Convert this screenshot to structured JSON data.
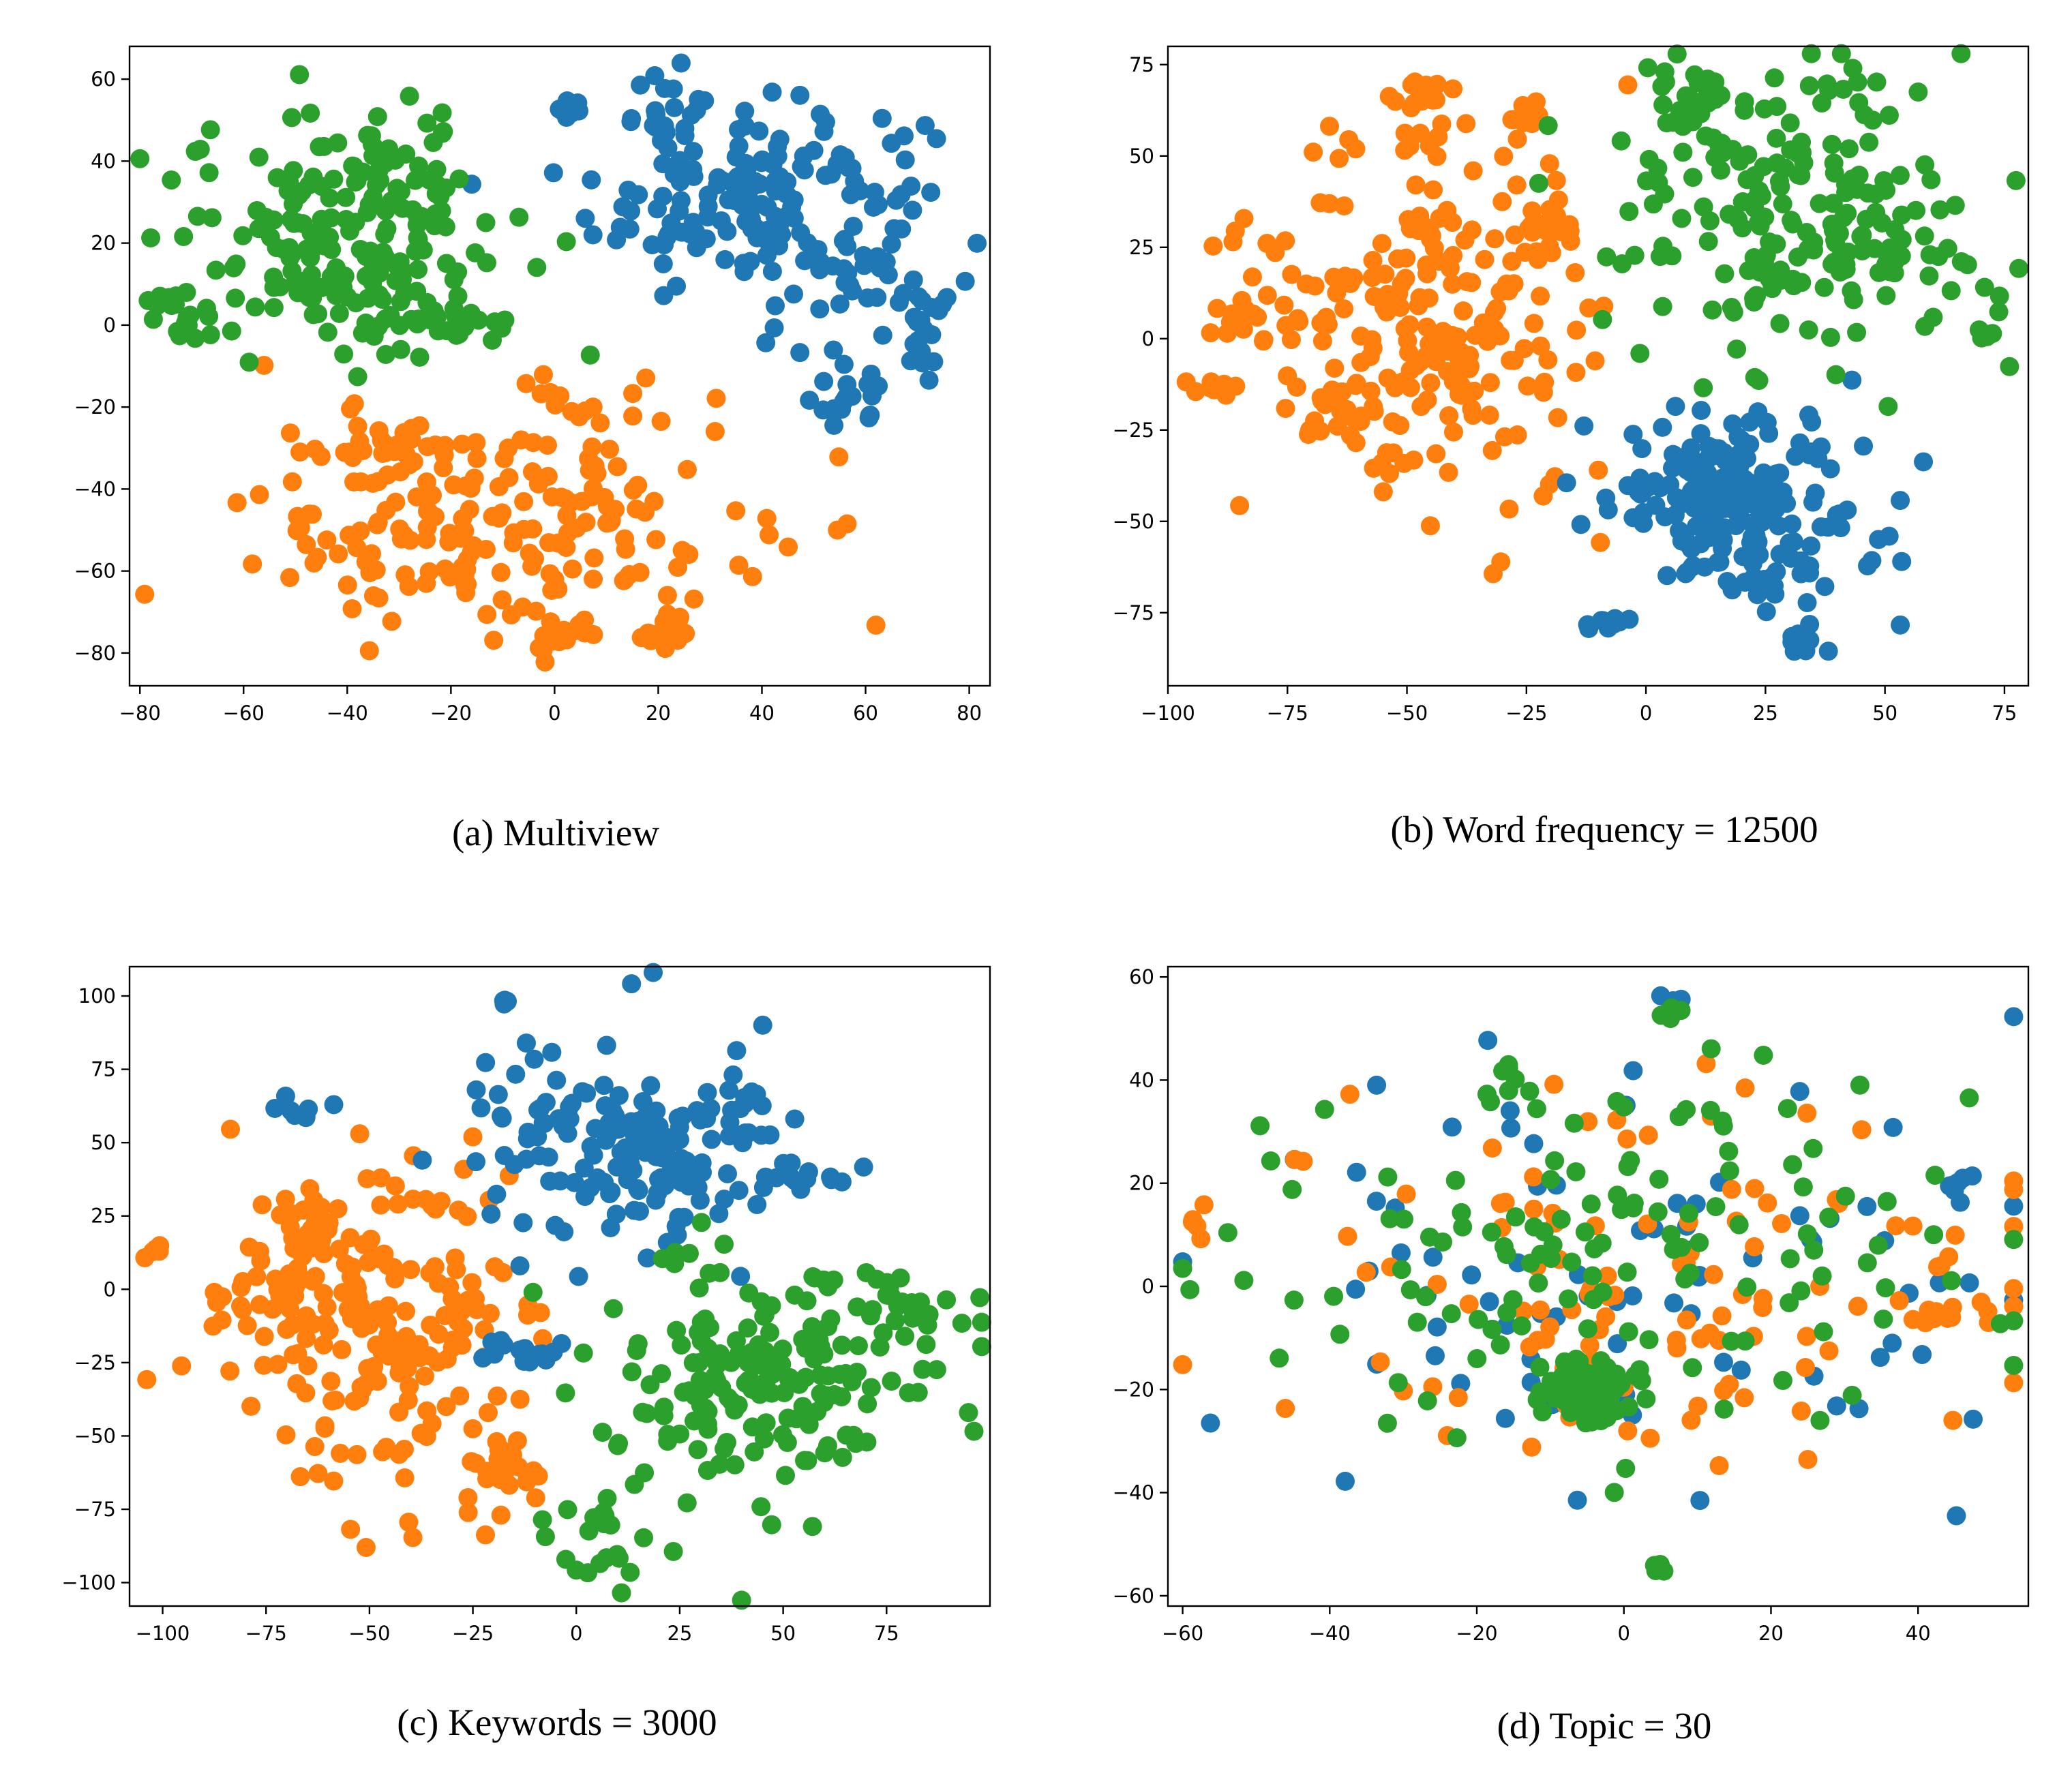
{
  "colors": {
    "blue": "#1f77b4",
    "orange": "#ff7f0e",
    "green": "#2ca02c"
  },
  "chart_data": [
    {
      "type": "scatter",
      "title": "(a) Multiview",
      "xlim": [
        -82,
        84
      ],
      "ylim": [
        -88,
        68
      ],
      "xticks": [
        -80,
        -60,
        -40,
        -20,
        0,
        20,
        40,
        60,
        80
      ],
      "yticks": [
        -80,
        -60,
        -40,
        -20,
        0,
        20,
        40,
        60
      ],
      "series": [
        {
          "name": "blue",
          "color": "#1f77b4",
          "clusters": [
            {
              "cx": 40,
              "cy": 30,
              "sx": 16,
              "sy": 12,
              "n": 170
            },
            {
              "cx": 25,
              "cy": 50,
              "sx": 5,
              "sy": 6,
              "n": 25
            },
            {
              "cx": 3,
              "cy": 52,
              "sx": 1.5,
              "sy": 1.5,
              "n": 8
            },
            {
              "cx": 72,
              "cy": -2,
              "sx": 3,
              "sy": 5,
              "n": 20
            },
            {
              "cx": 56,
              "cy": -18,
              "sx": 4,
              "sy": 4,
              "n": 20
            },
            {
              "cx": 60,
              "cy": 10,
              "sx": 5,
              "sy": 5,
              "n": 12
            }
          ]
        },
        {
          "name": "orange",
          "color": "#ff7f0e",
          "clusters": [
            {
              "cx": -10,
              "cy": -48,
              "sx": 24,
              "sy": 14,
              "n": 200
            },
            {
              "cx": 0,
              "cy": -76,
              "sx": 3,
              "sy": 3,
              "n": 15
            },
            {
              "cx": 22,
              "cy": -75,
              "sx": 4,
              "sy": 3,
              "n": 15
            },
            {
              "cx": 10,
              "cy": -18,
              "sx": 6,
              "sy": 3,
              "n": 10
            },
            {
              "cx": -33,
              "cy": -30,
              "sx": 4,
              "sy": 4,
              "n": 18
            }
          ]
        },
        {
          "name": "green",
          "color": "#2ca02c",
          "clusters": [
            {
              "cx": -40,
              "cy": 22,
              "sx": 16,
              "sy": 14,
              "n": 180
            },
            {
              "cx": -72,
              "cy": 3,
              "sx": 3,
              "sy": 4,
              "n": 20
            },
            {
              "cx": -28,
              "cy": 40,
              "sx": 7,
              "sy": 5,
              "n": 20
            },
            {
              "cx": -22,
              "cy": 0,
              "sx": 8,
              "sy": 3,
              "n": 25
            }
          ]
        }
      ]
    },
    {
      "type": "scatter",
      "title": "(b) Word frequency = 12500",
      "xlim": [
        -100,
        80
      ],
      "ylim": [
        -95,
        80
      ],
      "xticks": [
        -100,
        -75,
        -50,
        -25,
        0,
        25,
        50,
        75
      ],
      "yticks": [
        -75,
        -50,
        -25,
        0,
        25,
        50,
        75
      ],
      "series": [
        {
          "name": "orange",
          "color": "#ff7f0e",
          "clusters": [
            {
              "cx": -45,
              "cy": 5,
              "sx": 20,
              "sy": 25,
              "n": 200
            },
            {
              "cx": -47,
              "cy": 68,
              "sx": 3,
              "sy": 2,
              "n": 14
            },
            {
              "cx": -25,
              "cy": 60,
              "sx": 2,
              "sy": 2,
              "n": 10
            },
            {
              "cx": -90,
              "cy": -13,
              "sx": 2,
              "sy": 2,
              "n": 8
            },
            {
              "cx": -84,
              "cy": 6,
              "sx": 4,
              "sy": 4,
              "n": 15
            },
            {
              "cx": -40,
              "cy": -5,
              "sx": 5,
              "sy": 4,
              "n": 25
            },
            {
              "cx": -65,
              "cy": -20,
              "sx": 4,
              "sy": 6,
              "n": 18
            },
            {
              "cx": -22,
              "cy": 32,
              "sx": 5,
              "sy": 5,
              "n": 18
            }
          ]
        },
        {
          "name": "blue",
          "color": "#1f77b4",
          "clusters": [
            {
              "cx": 18,
              "cy": -45,
              "sx": 14,
              "sy": 14,
              "n": 170
            },
            {
              "cx": 12,
              "cy": -38,
              "sx": 4,
              "sy": 5,
              "n": 35
            },
            {
              "cx": -8,
              "cy": -78,
              "sx": 2,
              "sy": 2,
              "n": 10
            },
            {
              "cx": 32,
              "cy": -84,
              "sx": 5,
              "sy": 2,
              "n": 10
            }
          ]
        },
        {
          "name": "green",
          "color": "#2ca02c",
          "clusters": [
            {
              "cx": 30,
              "cy": 35,
              "sx": 18,
              "sy": 20,
              "n": 180
            },
            {
              "cx": 10,
              "cy": 65,
              "sx": 5,
              "sy": 5,
              "n": 25
            },
            {
              "cx": 50,
              "cy": 25,
              "sx": 5,
              "sy": 5,
              "n": 20
            },
            {
              "cx": 72,
              "cy": 2,
              "sx": 2,
              "sy": 6,
              "n": 8
            }
          ]
        }
      ]
    },
    {
      "type": "scatter",
      "title": "(c) Keywords = 3000",
      "xlim": [
        -108,
        100
      ],
      "ylim": [
        -108,
        110
      ],
      "xticks": [
        -100,
        -75,
        -50,
        -25,
        0,
        25,
        50,
        75
      ],
      "yticks": [
        -100,
        -75,
        -50,
        -25,
        0,
        25,
        50,
        75,
        100
      ],
      "series": [
        {
          "name": "orange",
          "color": "#ff7f0e",
          "clusters": [
            {
              "cx": -48,
              "cy": -10,
              "sx": 18,
              "sy": 28,
              "n": 220
            },
            {
              "cx": -102,
              "cy": 12,
              "sx": 1.5,
              "sy": 1.5,
              "n": 6
            },
            {
              "cx": -65,
              "cy": 20,
              "sx": 6,
              "sy": 5,
              "n": 20
            },
            {
              "cx": -18,
              "cy": -60,
              "sx": 6,
              "sy": 6,
              "n": 20
            }
          ]
        },
        {
          "name": "blue",
          "color": "#1f77b4",
          "clusters": [
            {
              "cx": 15,
              "cy": 50,
              "sx": 20,
              "sy": 18,
              "n": 170
            },
            {
              "cx": -15,
              "cy": -20,
              "sx": 7,
              "sy": 2,
              "n": 16
            },
            {
              "cx": -68,
              "cy": 60,
              "sx": 4,
              "sy": 2,
              "n": 8
            },
            {
              "cx": 60,
              "cy": 38,
              "sx": 5,
              "sy": 2,
              "n": 8
            },
            {
              "cx": -18,
              "cy": 98,
              "sx": 1.5,
              "sy": 1.5,
              "n": 5
            }
          ]
        },
        {
          "name": "green",
          "color": "#2ca02c",
          "clusters": [
            {
              "cx": 45,
              "cy": -30,
              "sx": 22,
              "sy": 20,
              "n": 180
            },
            {
              "cx": 5,
              "cy": -85,
              "sx": 6,
              "sy": 8,
              "n": 20
            },
            {
              "cx": 80,
              "cy": -5,
              "sx": 5,
              "sy": 8,
              "n": 20
            }
          ]
        }
      ]
    },
    {
      "type": "scatter",
      "title": "(d) Topic = 30",
      "xlim": [
        -62,
        55
      ],
      "ylim": [
        -62,
        62
      ],
      "xticks": [
        -60,
        -40,
        -20,
        0,
        20,
        40
      ],
      "yticks": [
        -60,
        -40,
        -20,
        0,
        20,
        40,
        60
      ],
      "series": [
        {
          "name": "blue",
          "color": "#1f77b4",
          "clusters": [
            {
              "cx": -5,
              "cy": -20,
              "sx": 2.5,
              "sy": 2.5,
              "n": 45
            },
            {
              "cx": 0,
              "cy": 0,
              "sx": 28,
              "sy": 20,
              "n": 80
            },
            {
              "cx": 7,
              "cy": 55,
              "sx": 1,
              "sy": 1,
              "n": 4
            },
            {
              "cx": 47,
              "cy": 20,
              "sx": 2,
              "sy": 1,
              "n": 6
            }
          ]
        },
        {
          "name": "orange",
          "color": "#ff7f0e",
          "clusters": [
            {
              "cx": -5,
              "cy": -20,
              "sx": 2.5,
              "sy": 2.5,
              "n": 35
            },
            {
              "cx": 5,
              "cy": 0,
              "sx": 28,
              "sy": 20,
              "n": 110
            },
            {
              "cx": -57,
              "cy": 13,
              "sx": 1.5,
              "sy": 1.5,
              "n": 6
            },
            {
              "cx": 45,
              "cy": -6,
              "sx": 3,
              "sy": 2,
              "n": 10
            }
          ]
        },
        {
          "name": "green",
          "color": "#2ca02c",
          "clusters": [
            {
              "cx": -5,
              "cy": -20,
              "sx": 2.8,
              "sy": 2.8,
              "n": 110
            },
            {
              "cx": -3,
              "cy": 5,
              "sx": 28,
              "sy": 20,
              "n": 140
            },
            {
              "cx": 7,
              "cy": 54,
              "sx": 1,
              "sy": 1,
              "n": 6
            },
            {
              "cx": -15,
              "cy": 40,
              "sx": 1.5,
              "sy": 2,
              "n": 6
            },
            {
              "cx": 5,
              "cy": -55,
              "sx": 1,
              "sy": 1,
              "n": 5
            }
          ]
        }
      ]
    }
  ]
}
